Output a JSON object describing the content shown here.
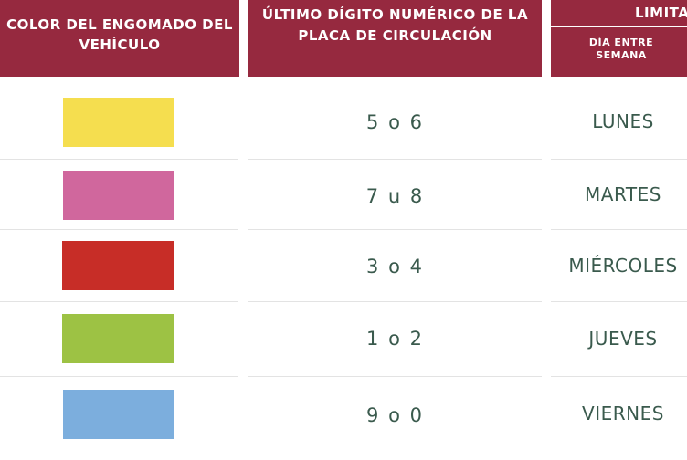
{
  "header": {
    "color_col": "COLOR DEL ENGOMADO DEL VEHÍCULO",
    "digit_col": "ÚLTIMO DÍGITO NUMÉRICO DE LA PLACA DE CIRCULACIÓN",
    "limit_col": "LIMITA",
    "weekday_col": "DÍA ENTRE SEMANA"
  },
  "rows": [
    {
      "color": "#f5de4f",
      "digits": "5 o 6",
      "day": "LUNES"
    },
    {
      "color": "#d0679d",
      "digits": "7 u 8",
      "day": "MARTES"
    },
    {
      "color": "#c72d27",
      "digits": "3 o 4",
      "day": "MIÉRCOLES"
    },
    {
      "color": "#9dc244",
      "digits": "1 o 2",
      "day": "JUEVES"
    },
    {
      "color": "#7caedd",
      "digits": "9 o 0",
      "day": "VIERNES"
    }
  ],
  "colors": {
    "header_bg": "#96293f",
    "text": "#3a5a4d",
    "divider": "#e3e3e3"
  }
}
